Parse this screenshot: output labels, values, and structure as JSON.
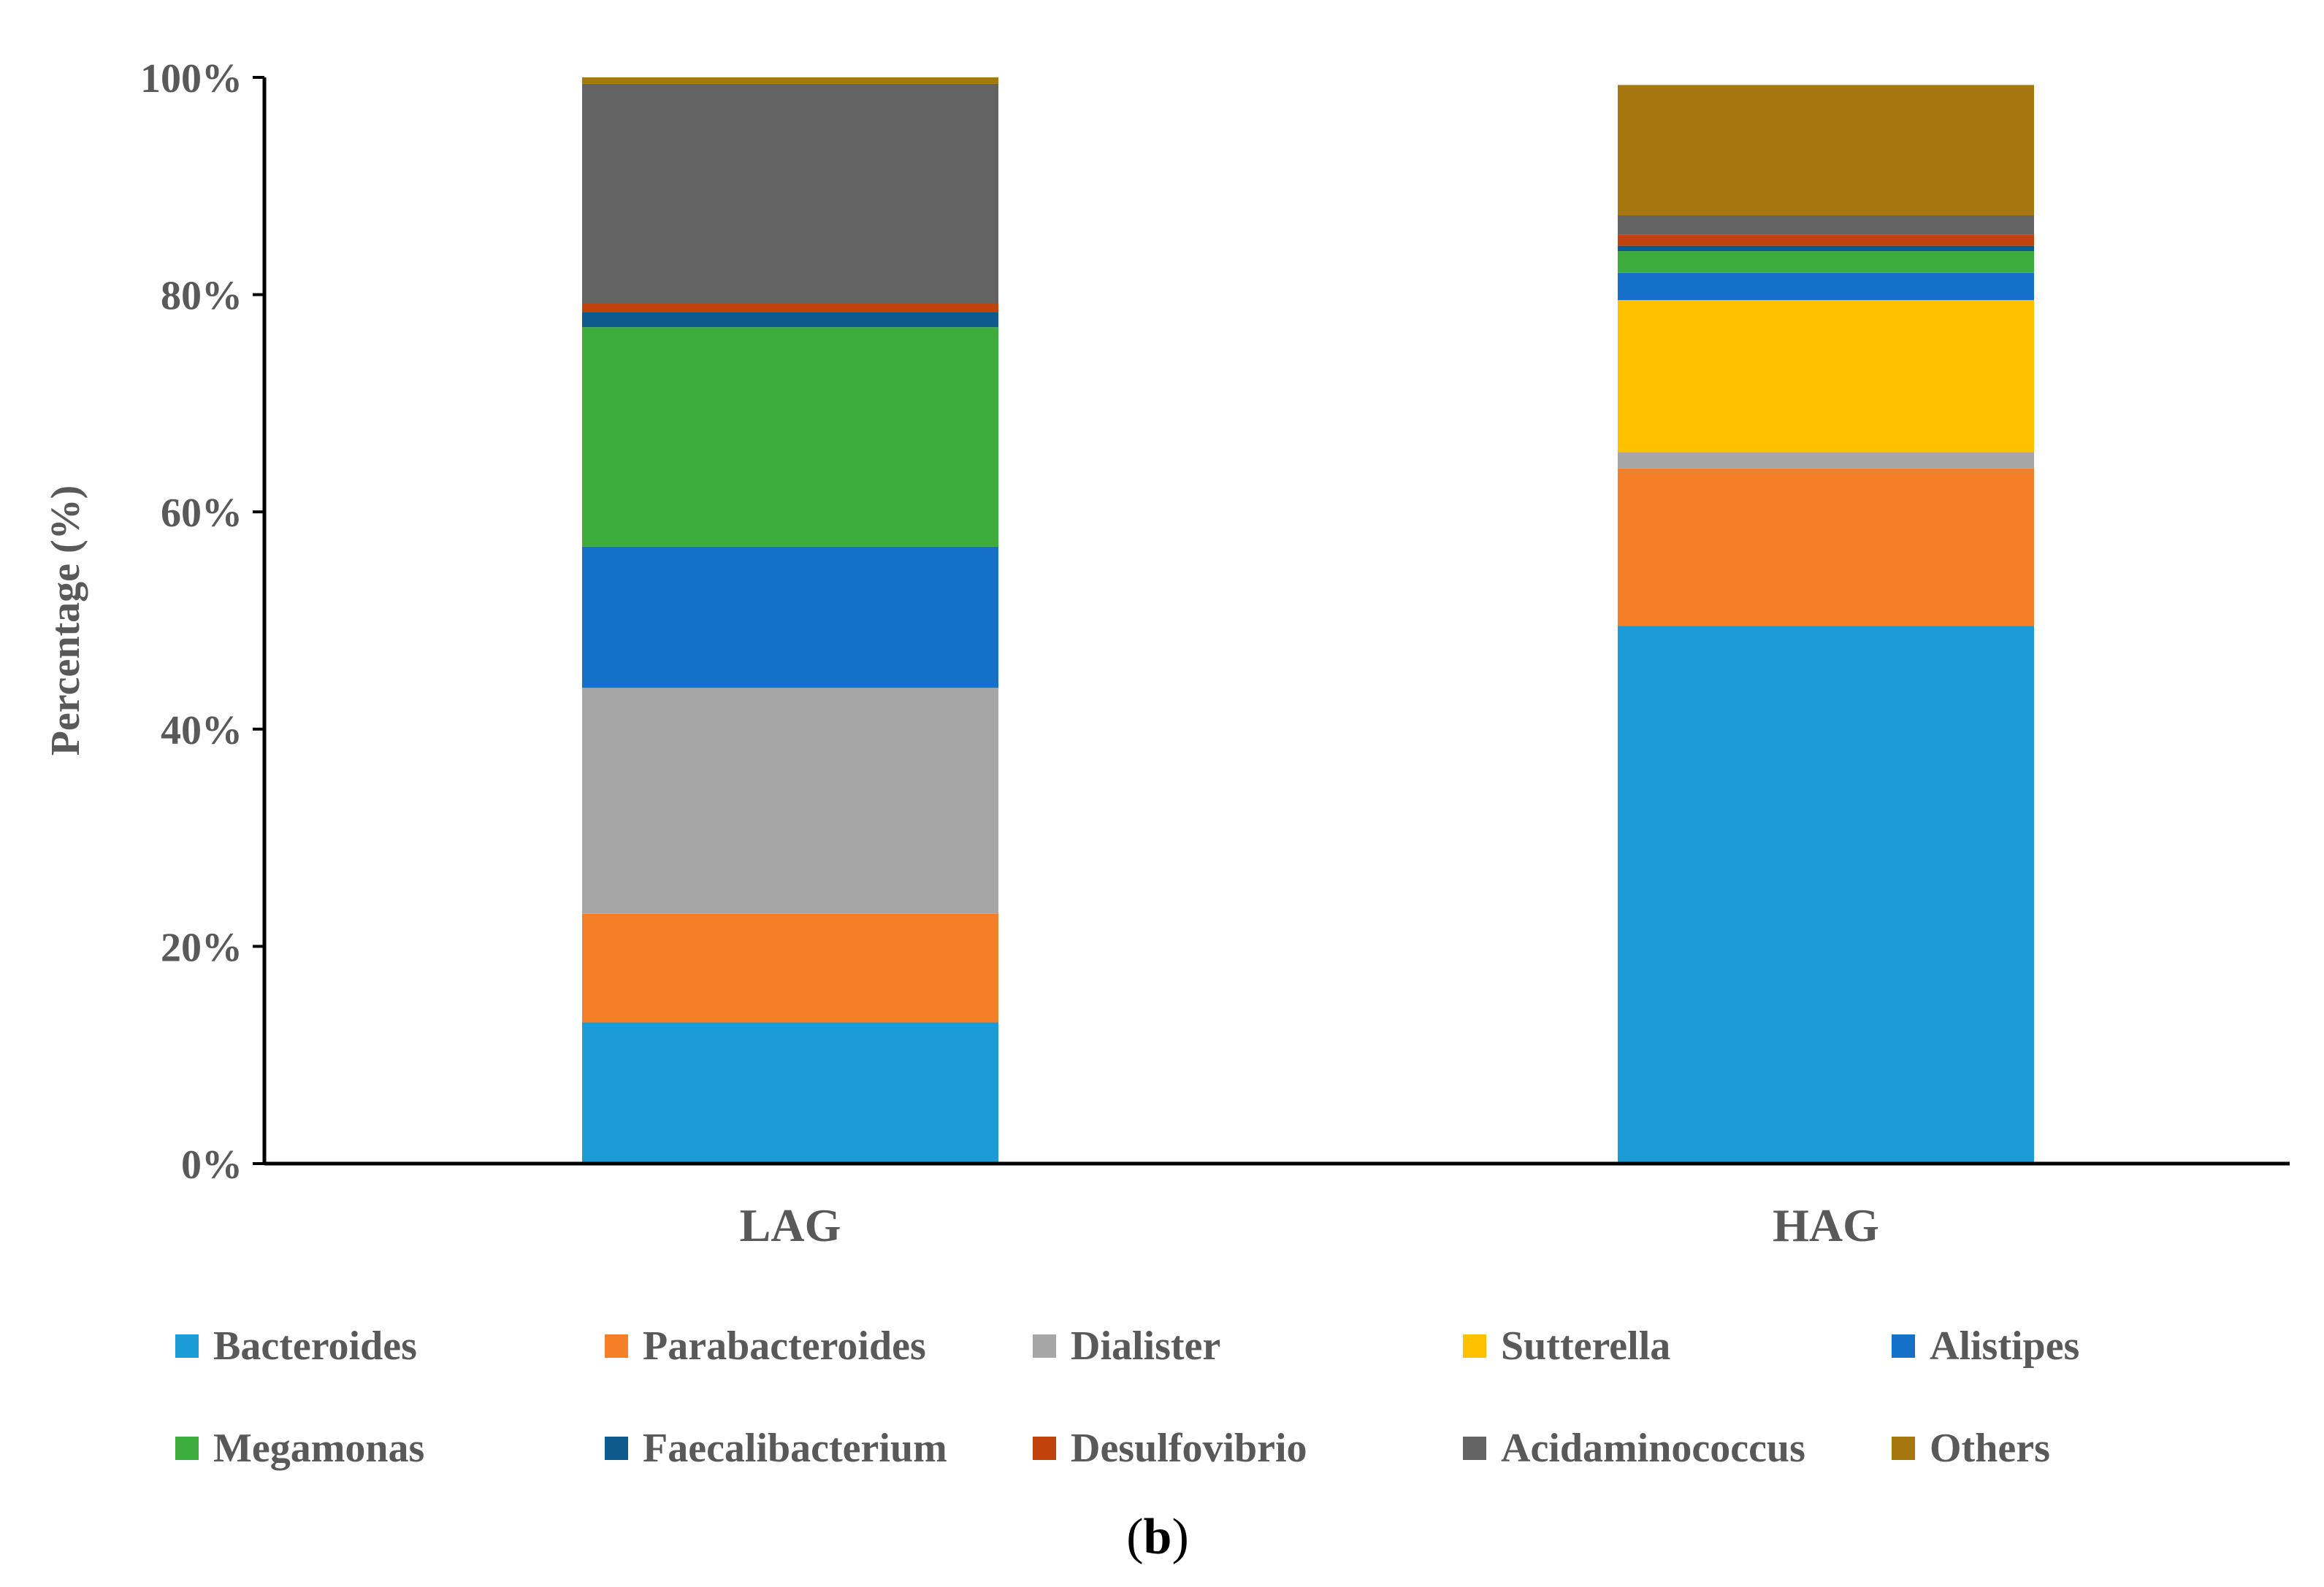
{
  "chart_data": {
    "type": "bar",
    "stacked": true,
    "title": "",
    "xlabel": "",
    "ylabel": "Percentage (%)",
    "ylim": [
      0,
      100
    ],
    "yticks": [
      "0%",
      "20%",
      "40%",
      "60%",
      "80%",
      "100%"
    ],
    "ytick_values": [
      0,
      20,
      40,
      60,
      80,
      100
    ],
    "categories": [
      "LAG",
      "HAG"
    ],
    "series": [
      {
        "name": "Bacteroides",
        "color": "#1b9bd8",
        "values": [
          13.0,
          49.5
        ]
      },
      {
        "name": "Parabacteroides",
        "color": "#f57f27",
        "values": [
          10.0,
          14.5
        ]
      },
      {
        "name": "Dialister",
        "color": "#a6a6a6",
        "values": [
          20.8,
          1.5
        ]
      },
      {
        "name": "Sutterella",
        "color": "#ffc000",
        "values": [
          0.0,
          14.0
        ]
      },
      {
        "name": "Alistipes",
        "color": "#1470c8",
        "values": [
          13.0,
          2.5
        ]
      },
      {
        "name": "Megamonas",
        "color": "#3cac3c",
        "values": [
          20.2,
          2.0
        ]
      },
      {
        "name": "Faecalibacterium",
        "color": "#0f5a8c",
        "values": [
          1.4,
          0.5
        ]
      },
      {
        "name": "Desulfovibrio",
        "color": "#c0440a",
        "values": [
          0.8,
          1.0
        ]
      },
      {
        "name": "Acidaminococcus",
        "color": "#636363",
        "values": [
          20.2,
          1.8
        ]
      },
      {
        "name": "Others",
        "color": "#a6770f",
        "values": [
          0.6,
          12.0
        ]
      }
    ],
    "legend_position": "bottom",
    "caption_letter": "b",
    "caption_open": "(",
    "caption_close": ")"
  }
}
